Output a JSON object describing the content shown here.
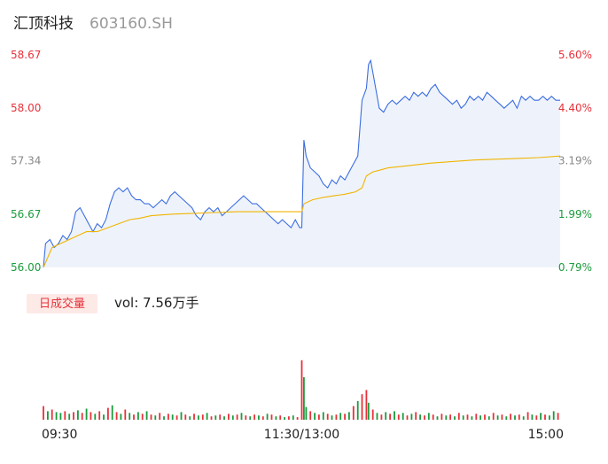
{
  "header": {
    "name": "汇顶科技",
    "code": "603160.SH"
  },
  "colors": {
    "up": "#e8313a",
    "down": "#1a9b3c",
    "neutral": "#888888",
    "price_line": "#3b6de0",
    "avg_line": "#f0b400",
    "fill": "#eef3fb",
    "badge_bg": "#fde9e6",
    "badge_text": "#e8313a",
    "title": "#222222",
    "code": "#999999"
  },
  "volume": {
    "badge_label": "日成交量",
    "summary": "vol: 7.56万手"
  },
  "chart_data": {
    "type": "line",
    "price_axis": {
      "min": 56.0,
      "max": 58.67,
      "left_ticks": [
        {
          "value": 58.67,
          "label": "58.67",
          "tone": "up"
        },
        {
          "value": 58.0,
          "label": "58.00",
          "tone": "up"
        },
        {
          "value": 57.34,
          "label": "57.34",
          "tone": "neutral"
        },
        {
          "value": 56.67,
          "label": "56.67",
          "tone": "down"
        },
        {
          "value": 56.0,
          "label": "56.00",
          "tone": "down"
        }
      ],
      "right_ticks": [
        {
          "value": 58.67,
          "label": "5.60%",
          "tone": "up"
        },
        {
          "value": 58.0,
          "label": "4.40%",
          "tone": "up"
        },
        {
          "value": 57.34,
          "label": "3.19%",
          "tone": "neutral"
        },
        {
          "value": 56.67,
          "label": "1.99%",
          "tone": "down"
        },
        {
          "value": 56.0,
          "label": "0.79%",
          "tone": "down"
        }
      ]
    },
    "time_labels": [
      {
        "minute": 0,
        "label": "09:30"
      },
      {
        "minute": 120,
        "label": "11:30/13:00"
      },
      {
        "minute": 240,
        "label": "15:00"
      }
    ],
    "series": [
      {
        "role": "price",
        "points": [
          [
            0,
            56.0
          ],
          [
            1,
            56.3
          ],
          [
            3,
            56.35
          ],
          [
            5,
            56.25
          ],
          [
            7,
            56.3
          ],
          [
            9,
            56.4
          ],
          [
            11,
            56.35
          ],
          [
            13,
            56.45
          ],
          [
            15,
            56.7
          ],
          [
            17,
            56.75
          ],
          [
            19,
            56.65
          ],
          [
            21,
            56.55
          ],
          [
            23,
            56.45
          ],
          [
            25,
            56.55
          ],
          [
            27,
            56.5
          ],
          [
            29,
            56.6
          ],
          [
            31,
            56.8
          ],
          [
            33,
            56.95
          ],
          [
            35,
            57.0
          ],
          [
            37,
            56.95
          ],
          [
            39,
            57.0
          ],
          [
            41,
            56.9
          ],
          [
            43,
            56.85
          ],
          [
            45,
            56.85
          ],
          [
            47,
            56.8
          ],
          [
            49,
            56.8
          ],
          [
            51,
            56.75
          ],
          [
            53,
            56.8
          ],
          [
            55,
            56.85
          ],
          [
            57,
            56.8
          ],
          [
            59,
            56.9
          ],
          [
            61,
            56.95
          ],
          [
            63,
            56.9
          ],
          [
            65,
            56.85
          ],
          [
            67,
            56.8
          ],
          [
            69,
            56.75
          ],
          [
            71,
            56.65
          ],
          [
            73,
            56.6
          ],
          [
            75,
            56.7
          ],
          [
            77,
            56.75
          ],
          [
            79,
            56.7
          ],
          [
            81,
            56.75
          ],
          [
            83,
            56.65
          ],
          [
            85,
            56.7
          ],
          [
            87,
            56.75
          ],
          [
            89,
            56.8
          ],
          [
            91,
            56.85
          ],
          [
            93,
            56.9
          ],
          [
            95,
            56.85
          ],
          [
            97,
            56.8
          ],
          [
            99,
            56.8
          ],
          [
            101,
            56.75
          ],
          [
            103,
            56.7
          ],
          [
            105,
            56.65
          ],
          [
            107,
            56.6
          ],
          [
            109,
            56.55
          ],
          [
            111,
            56.6
          ],
          [
            113,
            56.55
          ],
          [
            115,
            56.5
          ],
          [
            117,
            56.6
          ],
          [
            119,
            56.5
          ],
          [
            120,
            56.5
          ],
          [
            121,
            57.6
          ],
          [
            122,
            57.4
          ],
          [
            124,
            57.25
          ],
          [
            126,
            57.2
          ],
          [
            128,
            57.15
          ],
          [
            130,
            57.05
          ],
          [
            132,
            57.0
          ],
          [
            134,
            57.1
          ],
          [
            136,
            57.05
          ],
          [
            138,
            57.15
          ],
          [
            140,
            57.1
          ],
          [
            142,
            57.2
          ],
          [
            144,
            57.3
          ],
          [
            146,
            57.4
          ],
          [
            148,
            58.1
          ],
          [
            150,
            58.25
          ],
          [
            151,
            58.55
          ],
          [
            152,
            58.6
          ],
          [
            153,
            58.45
          ],
          [
            154,
            58.3
          ],
          [
            156,
            58.0
          ],
          [
            158,
            57.95
          ],
          [
            160,
            58.05
          ],
          [
            162,
            58.1
          ],
          [
            164,
            58.05
          ],
          [
            166,
            58.1
          ],
          [
            168,
            58.15
          ],
          [
            170,
            58.1
          ],
          [
            172,
            58.2
          ],
          [
            174,
            58.15
          ],
          [
            176,
            58.2
          ],
          [
            178,
            58.15
          ],
          [
            180,
            58.25
          ],
          [
            182,
            58.3
          ],
          [
            184,
            58.2
          ],
          [
            186,
            58.15
          ],
          [
            188,
            58.1
          ],
          [
            190,
            58.05
          ],
          [
            192,
            58.1
          ],
          [
            194,
            58.0
          ],
          [
            196,
            58.05
          ],
          [
            198,
            58.15
          ],
          [
            200,
            58.1
          ],
          [
            202,
            58.15
          ],
          [
            204,
            58.1
          ],
          [
            206,
            58.2
          ],
          [
            208,
            58.15
          ],
          [
            210,
            58.1
          ],
          [
            212,
            58.05
          ],
          [
            214,
            58.0
          ],
          [
            216,
            58.05
          ],
          [
            218,
            58.1
          ],
          [
            220,
            58.0
          ],
          [
            222,
            58.15
          ],
          [
            224,
            58.1
          ],
          [
            226,
            58.15
          ],
          [
            228,
            58.1
          ],
          [
            230,
            58.1
          ],
          [
            232,
            58.15
          ],
          [
            234,
            58.1
          ],
          [
            236,
            58.15
          ],
          [
            238,
            58.1
          ],
          [
            240,
            58.1
          ]
        ]
      },
      {
        "role": "average",
        "points": [
          [
            0,
            56.0
          ],
          [
            4,
            56.25
          ],
          [
            8,
            56.3
          ],
          [
            12,
            56.35
          ],
          [
            16,
            56.4
          ],
          [
            20,
            56.45
          ],
          [
            25,
            56.45
          ],
          [
            30,
            56.5
          ],
          [
            35,
            56.55
          ],
          [
            40,
            56.6
          ],
          [
            45,
            56.62
          ],
          [
            50,
            56.65
          ],
          [
            60,
            56.67
          ],
          [
            70,
            56.68
          ],
          [
            80,
            56.69
          ],
          [
            90,
            56.7
          ],
          [
            100,
            56.7
          ],
          [
            110,
            56.7
          ],
          [
            120,
            56.7
          ],
          [
            121,
            56.8
          ],
          [
            125,
            56.85
          ],
          [
            130,
            56.88
          ],
          [
            135,
            56.9
          ],
          [
            140,
            56.92
          ],
          [
            145,
            56.95
          ],
          [
            148,
            57.0
          ],
          [
            150,
            57.15
          ],
          [
            153,
            57.2
          ],
          [
            156,
            57.22
          ],
          [
            160,
            57.25
          ],
          [
            170,
            57.28
          ],
          [
            180,
            57.31
          ],
          [
            190,
            57.33
          ],
          [
            200,
            57.35
          ],
          [
            210,
            57.36
          ],
          [
            220,
            57.37
          ],
          [
            230,
            57.38
          ],
          [
            240,
            57.4
          ]
        ]
      }
    ],
    "volume_series": {
      "max": 100,
      "bars": [
        [
          0,
          16,
          "up"
        ],
        [
          2,
          10,
          "down"
        ],
        [
          4,
          12,
          "up"
        ],
        [
          6,
          9,
          "down"
        ],
        [
          8,
          8,
          "down"
        ],
        [
          10,
          10,
          "up"
        ],
        [
          12,
          7,
          "down"
        ],
        [
          14,
          9,
          "up"
        ],
        [
          16,
          11,
          "down"
        ],
        [
          18,
          8,
          "up"
        ],
        [
          20,
          13,
          "down"
        ],
        [
          22,
          9,
          "up"
        ],
        [
          24,
          7,
          "down"
        ],
        [
          26,
          10,
          "up"
        ],
        [
          28,
          6,
          "down"
        ],
        [
          30,
          14,
          "up"
        ],
        [
          32,
          17,
          "down"
        ],
        [
          34,
          9,
          "up"
        ],
        [
          36,
          7,
          "down"
        ],
        [
          38,
          12,
          "up"
        ],
        [
          40,
          8,
          "down"
        ],
        [
          42,
          6,
          "up"
        ],
        [
          44,
          9,
          "down"
        ],
        [
          46,
          7,
          "up"
        ],
        [
          48,
          10,
          "down"
        ],
        [
          50,
          6,
          "up"
        ],
        [
          52,
          5,
          "down"
        ],
        [
          54,
          8,
          "up"
        ],
        [
          56,
          4,
          "down"
        ],
        [
          58,
          7,
          "up"
        ],
        [
          60,
          6,
          "down"
        ],
        [
          62,
          5,
          "up"
        ],
        [
          64,
          9,
          "down"
        ],
        [
          66,
          6,
          "up"
        ],
        [
          68,
          4,
          "down"
        ],
        [
          70,
          7,
          "up"
        ],
        [
          72,
          5,
          "down"
        ],
        [
          74,
          6,
          "up"
        ],
        [
          76,
          8,
          "down"
        ],
        [
          78,
          4,
          "up"
        ],
        [
          80,
          5,
          "down"
        ],
        [
          82,
          6,
          "up"
        ],
        [
          84,
          4,
          "down"
        ],
        [
          86,
          7,
          "up"
        ],
        [
          88,
          5,
          "down"
        ],
        [
          90,
          6,
          "up"
        ],
        [
          92,
          8,
          "down"
        ],
        [
          94,
          5,
          "up"
        ],
        [
          96,
          4,
          "down"
        ],
        [
          98,
          6,
          "up"
        ],
        [
          100,
          5,
          "down"
        ],
        [
          102,
          4,
          "up"
        ],
        [
          104,
          7,
          "down"
        ],
        [
          106,
          6,
          "up"
        ],
        [
          108,
          4,
          "down"
        ],
        [
          110,
          5,
          "up"
        ],
        [
          112,
          3,
          "down"
        ],
        [
          114,
          4,
          "up"
        ],
        [
          116,
          5,
          "down"
        ],
        [
          118,
          3,
          "up"
        ],
        [
          120,
          70,
          "up"
        ],
        [
          121,
          50,
          "down"
        ],
        [
          122,
          15,
          "down"
        ],
        [
          124,
          10,
          "up"
        ],
        [
          126,
          8,
          "down"
        ],
        [
          128,
          6,
          "up"
        ],
        [
          130,
          9,
          "down"
        ],
        [
          132,
          7,
          "up"
        ],
        [
          134,
          5,
          "down"
        ],
        [
          136,
          6,
          "up"
        ],
        [
          138,
          8,
          "down"
        ],
        [
          140,
          7,
          "up"
        ],
        [
          142,
          9,
          "down"
        ],
        [
          144,
          16,
          "up"
        ],
        [
          146,
          22,
          "down"
        ],
        [
          148,
          30,
          "up"
        ],
        [
          150,
          35,
          "up"
        ],
        [
          151,
          20,
          "down"
        ],
        [
          153,
          12,
          "up"
        ],
        [
          155,
          8,
          "down"
        ],
        [
          157,
          6,
          "up"
        ],
        [
          159,
          9,
          "down"
        ],
        [
          161,
          7,
          "up"
        ],
        [
          163,
          10,
          "down"
        ],
        [
          165,
          6,
          "up"
        ],
        [
          167,
          8,
          "down"
        ],
        [
          169,
          5,
          "up"
        ],
        [
          171,
          7,
          "down"
        ],
        [
          173,
          9,
          "up"
        ],
        [
          175,
          6,
          "down"
        ],
        [
          177,
          5,
          "up"
        ],
        [
          179,
          8,
          "down"
        ],
        [
          181,
          6,
          "up"
        ],
        [
          183,
          4,
          "down"
        ],
        [
          185,
          7,
          "up"
        ],
        [
          187,
          5,
          "down"
        ],
        [
          189,
          6,
          "up"
        ],
        [
          191,
          4,
          "down"
        ],
        [
          193,
          8,
          "up"
        ],
        [
          195,
          5,
          "down"
        ],
        [
          197,
          6,
          "up"
        ],
        [
          199,
          4,
          "down"
        ],
        [
          201,
          7,
          "up"
        ],
        [
          203,
          5,
          "down"
        ],
        [
          205,
          6,
          "up"
        ],
        [
          207,
          4,
          "down"
        ],
        [
          209,
          8,
          "up"
        ],
        [
          211,
          5,
          "down"
        ],
        [
          213,
          6,
          "up"
        ],
        [
          215,
          4,
          "down"
        ],
        [
          217,
          7,
          "up"
        ],
        [
          219,
          5,
          "down"
        ],
        [
          221,
          6,
          "up"
        ],
        [
          223,
          4,
          "down"
        ],
        [
          225,
          9,
          "up"
        ],
        [
          227,
          6,
          "down"
        ],
        [
          229,
          5,
          "up"
        ],
        [
          231,
          8,
          "down"
        ],
        [
          233,
          6,
          "up"
        ],
        [
          235,
          5,
          "down"
        ],
        [
          237,
          10,
          "down"
        ],
        [
          239,
          8,
          "up"
        ]
      ]
    }
  }
}
